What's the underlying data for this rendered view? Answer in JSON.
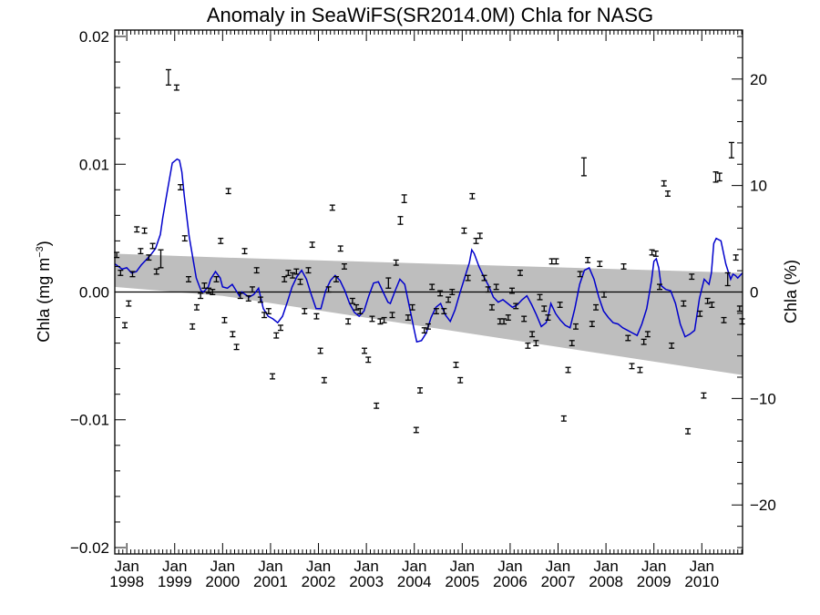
{
  "chart_data": {
    "type": "scatter",
    "title": "Anomaly in SeaWiFS(SR2014.0M) Chla for NASG",
    "ylabel": "Chla (mg m",
    "ylabel_sup": "−3",
    "ylabel_close": ")",
    "y2label": "Chla (%)",
    "x_start": 1997.75,
    "x_end": 2010.85,
    "ylim": [
      -0.0205,
      0.0205
    ],
    "y2lim": [
      -24.6,
      24.6
    ],
    "xtick_month": "Jan",
    "xticks": [
      {
        "x": 1998,
        "year": "1998"
      },
      {
        "x": 1999,
        "year": "1999"
      },
      {
        "x": 2000,
        "year": "2000"
      },
      {
        "x": 2001,
        "year": "2001"
      },
      {
        "x": 2002,
        "year": "2002"
      },
      {
        "x": 2003,
        "year": "2003"
      },
      {
        "x": 2004,
        "year": "2004"
      },
      {
        "x": 2005,
        "year": "2005"
      },
      {
        "x": 2006,
        "year": "2006"
      },
      {
        "x": 2007,
        "year": "2007"
      },
      {
        "x": 2008,
        "year": "2008"
      },
      {
        "x": 2009,
        "year": "2009"
      },
      {
        "x": 2010,
        "year": "2010"
      }
    ],
    "yticks": [
      {
        "v": 0.02,
        "label": "0.02"
      },
      {
        "v": 0.01,
        "label": "0.01"
      },
      {
        "v": 0.0,
        "label": "0.00"
      },
      {
        "v": -0.01,
        "label": "−0.01"
      },
      {
        "v": -0.02,
        "label": "−0.02"
      }
    ],
    "y2ticks": [
      {
        "v": 20,
        "label": "20"
      },
      {
        "v": 10,
        "label": "10"
      },
      {
        "v": 0,
        "label": "0"
      },
      {
        "v": -10,
        "label": "−10"
      },
      {
        "v": -20,
        "label": "−20"
      }
    ],
    "trend_band": {
      "x": [
        1997.75,
        2000.0,
        2010.85
      ],
      "upper": [
        0.003,
        0.0027,
        0.0015
      ],
      "lower": [
        0.0004,
        -0.0003,
        -0.0065
      ]
    },
    "zero_line": 0,
    "colors": {
      "series": "#0000cc",
      "band": "#bebebe",
      "points": "#000000"
    },
    "points": [
      {
        "x": 1997.79,
        "y": 0.0029,
        "e": 0.0002
      },
      {
        "x": 1997.87,
        "y": 0.0015,
        "e": 0.0002
      },
      {
        "x": 1997.96,
        "y": -0.0026,
        "e": 0.0002
      },
      {
        "x": 1998.04,
        "y": -0.0009,
        "e": 0.0002
      },
      {
        "x": 1998.12,
        "y": 0.0014,
        "e": 0.0002
      },
      {
        "x": 1998.21,
        "y": 0.0049,
        "e": 0.0002
      },
      {
        "x": 1998.29,
        "y": 0.0032,
        "e": 0.0002
      },
      {
        "x": 1998.37,
        "y": 0.0048,
        "e": 0.0002
      },
      {
        "x": 1998.46,
        "y": 0.0027,
        "e": 0.0002
      },
      {
        "x": 1998.54,
        "y": 0.0036,
        "e": 0.0002
      },
      {
        "x": 1998.62,
        "y": 0.0016,
        "e": 0.0002
      },
      {
        "x": 1998.71,
        "y": 0.0026,
        "e": 0.0007
      },
      {
        "x": 1998.87,
        "y": 0.0168,
        "e": 0.0006
      },
      {
        "x": 1999.04,
        "y": 0.016,
        "e": 0.0002
      },
      {
        "x": 1999.12,
        "y": 0.0082,
        "e": 0.0002
      },
      {
        "x": 1999.21,
        "y": 0.0042,
        "e": 0.0002
      },
      {
        "x": 1999.29,
        "y": 0.001,
        "e": 0.0002
      },
      {
        "x": 1999.37,
        "y": -0.0027,
        "e": 0.0002
      },
      {
        "x": 1999.46,
        "y": -0.0012,
        "e": 0.0002
      },
      {
        "x": 1999.54,
        "y": -0.0003,
        "e": 0.0002
      },
      {
        "x": 1999.62,
        "y": 0.0005,
        "e": 0.0002
      },
      {
        "x": 1999.71,
        "y": 0.0001,
        "e": 0.0002
      },
      {
        "x": 1999.79,
        "y": 0.0,
        "e": 0.0002
      },
      {
        "x": 1999.87,
        "y": 0.001,
        "e": 0.0002
      },
      {
        "x": 1999.96,
        "y": 0.004,
        "e": 0.0002
      },
      {
        "x": 2000.04,
        "y": -0.0022,
        "e": 0.0002
      },
      {
        "x": 2000.12,
        "y": 0.0079,
        "e": 0.0002
      },
      {
        "x": 2000.21,
        "y": -0.0033,
        "e": 0.0002
      },
      {
        "x": 2000.29,
        "y": -0.0043,
        "e": 0.0002
      },
      {
        "x": 2000.37,
        "y": -0.0003,
        "e": 0.0002
      },
      {
        "x": 2000.46,
        "y": 0.0032,
        "e": 0.0002
      },
      {
        "x": 2000.54,
        "y": -0.0005,
        "e": 0.0002
      },
      {
        "x": 2000.62,
        "y": 0.0002,
        "e": 0.0002
      },
      {
        "x": 2000.71,
        "y": 0.0017,
        "e": 0.0002
      },
      {
        "x": 2000.79,
        "y": -0.0006,
        "e": 0.0002
      },
      {
        "x": 2000.87,
        "y": -0.0018,
        "e": 0.0002
      },
      {
        "x": 2000.96,
        "y": -0.0015,
        "e": 0.0002
      },
      {
        "x": 2001.04,
        "y": -0.0066,
        "e": 0.0002
      },
      {
        "x": 2001.12,
        "y": -0.0034,
        "e": 0.0002
      },
      {
        "x": 2001.21,
        "y": -0.0028,
        "e": 0.0002
      },
      {
        "x": 2001.29,
        "y": 0.001,
        "e": 0.0002
      },
      {
        "x": 2001.37,
        "y": 0.0015,
        "e": 0.0002
      },
      {
        "x": 2001.46,
        "y": 0.0013,
        "e": 0.0002
      },
      {
        "x": 2001.54,
        "y": 0.0016,
        "e": 0.0002
      },
      {
        "x": 2001.62,
        "y": 0.0008,
        "e": 0.0002
      },
      {
        "x": 2001.71,
        "y": -0.0015,
        "e": 0.0002
      },
      {
        "x": 2001.79,
        "y": 0.0017,
        "e": 0.0002
      },
      {
        "x": 2001.87,
        "y": 0.0037,
        "e": 0.0002
      },
      {
        "x": 2001.96,
        "y": -0.0019,
        "e": 0.0002
      },
      {
        "x": 2002.04,
        "y": -0.0046,
        "e": 0.0002
      },
      {
        "x": 2002.12,
        "y": -0.0069,
        "e": 0.0002
      },
      {
        "x": 2002.21,
        "y": 0.0002,
        "e": 0.0002
      },
      {
        "x": 2002.29,
        "y": 0.0066,
        "e": 0.0002
      },
      {
        "x": 2002.37,
        "y": 0.001,
        "e": 0.0002
      },
      {
        "x": 2002.46,
        "y": 0.0034,
        "e": 0.0002
      },
      {
        "x": 2002.54,
        "y": 0.002,
        "e": 0.0002
      },
      {
        "x": 2002.62,
        "y": -0.0023,
        "e": 0.0002
      },
      {
        "x": 2002.71,
        "y": -0.0007,
        "e": 0.0002
      },
      {
        "x": 2002.79,
        "y": -0.0012,
        "e": 0.0002
      },
      {
        "x": 2002.87,
        "y": -0.0015,
        "e": 0.0002
      },
      {
        "x": 2002.96,
        "y": -0.0046,
        "e": 0.0002
      },
      {
        "x": 2003.04,
        "y": -0.0053,
        "e": 0.0002
      },
      {
        "x": 2003.12,
        "y": -0.0021,
        "e": 0.0002
      },
      {
        "x": 2003.21,
        "y": -0.0089,
        "e": 0.0002
      },
      {
        "x": 2003.29,
        "y": -0.0023,
        "e": 0.0002
      },
      {
        "x": 2003.37,
        "y": -0.0022,
        "e": 0.0002
      },
      {
        "x": 2003.46,
        "y": 0.0007,
        "e": 0.0004
      },
      {
        "x": 2003.54,
        "y": -0.0018,
        "e": 0.0002
      },
      {
        "x": 2003.62,
        "y": 0.0023,
        "e": 0.0002
      },
      {
        "x": 2003.71,
        "y": 0.0056,
        "e": 0.0003
      },
      {
        "x": 2003.79,
        "y": 0.0073,
        "e": 0.0003
      },
      {
        "x": 2003.87,
        "y": -0.002,
        "e": 0.0002
      },
      {
        "x": 2003.96,
        "y": -0.0012,
        "e": 0.0002
      },
      {
        "x": 2004.04,
        "y": -0.0108,
        "e": 0.0002
      },
      {
        "x": 2004.12,
        "y": -0.0077,
        "e": 0.0002
      },
      {
        "x": 2004.21,
        "y": -0.003,
        "e": 0.0002
      },
      {
        "x": 2004.29,
        "y": -0.0027,
        "e": 0.0002
      },
      {
        "x": 2004.37,
        "y": 0.0004,
        "e": 0.0002
      },
      {
        "x": 2004.46,
        "y": -0.0015,
        "e": 0.0002
      },
      {
        "x": 2004.54,
        "y": -0.0001,
        "e": 0.0002
      },
      {
        "x": 2004.62,
        "y": -0.0015,
        "e": 0.0002
      },
      {
        "x": 2004.71,
        "y": -0.0006,
        "e": 0.0002
      },
      {
        "x": 2004.79,
        "y": 0.0,
        "e": 0.0002
      },
      {
        "x": 2004.87,
        "y": -0.0057,
        "e": 0.0002
      },
      {
        "x": 2004.96,
        "y": -0.0069,
        "e": 0.0002
      },
      {
        "x": 2005.04,
        "y": 0.0048,
        "e": 0.0002
      },
      {
        "x": 2005.12,
        "y": 0.0011,
        "e": 0.0002
      },
      {
        "x": 2005.21,
        "y": 0.0075,
        "e": 0.0002
      },
      {
        "x": 2005.29,
        "y": 0.004,
        "e": 0.0002
      },
      {
        "x": 2005.37,
        "y": 0.0044,
        "e": 0.0002
      },
      {
        "x": 2005.46,
        "y": 0.0011,
        "e": 0.0002
      },
      {
        "x": 2005.54,
        "y": 0.0002,
        "e": 0.0002
      },
      {
        "x": 2005.62,
        "y": -0.0012,
        "e": 0.0002
      },
      {
        "x": 2005.71,
        "y": 0.0004,
        "e": 0.0002
      },
      {
        "x": 2005.79,
        "y": -0.0023,
        "e": 0.0002
      },
      {
        "x": 2005.87,
        "y": -0.0023,
        "e": 0.0002
      },
      {
        "x": 2005.96,
        "y": -0.002,
        "e": 0.0002
      },
      {
        "x": 2006.04,
        "y": 0.0001,
        "e": 0.0002
      },
      {
        "x": 2006.12,
        "y": -0.0011,
        "e": 0.0002
      },
      {
        "x": 2006.21,
        "y": 0.0015,
        "e": 0.0002
      },
      {
        "x": 2006.29,
        "y": -0.0021,
        "e": 0.0002
      },
      {
        "x": 2006.37,
        "y": -0.0042,
        "e": 0.0002
      },
      {
        "x": 2006.46,
        "y": -0.0033,
        "e": 0.0002
      },
      {
        "x": 2006.54,
        "y": -0.004,
        "e": 0.0002
      },
      {
        "x": 2006.62,
        "y": -0.0004,
        "e": 0.0002
      },
      {
        "x": 2006.71,
        "y": -0.0013,
        "e": 0.0002
      },
      {
        "x": 2006.79,
        "y": -0.002,
        "e": 0.0002
      },
      {
        "x": 2006.87,
        "y": 0.0024,
        "e": 0.0002
      },
      {
        "x": 2006.96,
        "y": 0.0024,
        "e": 0.0002
      },
      {
        "x": 2007.04,
        "y": -0.001,
        "e": 0.0002
      },
      {
        "x": 2007.12,
        "y": -0.0099,
        "e": 0.0002
      },
      {
        "x": 2007.21,
        "y": -0.0061,
        "e": 0.0002
      },
      {
        "x": 2007.29,
        "y": -0.004,
        "e": 0.0002
      },
      {
        "x": 2007.37,
        "y": -0.0027,
        "e": 0.0002
      },
      {
        "x": 2007.46,
        "y": 0.0014,
        "e": 0.0002
      },
      {
        "x": 2007.54,
        "y": 0.0098,
        "e": 0.0007
      },
      {
        "x": 2007.62,
        "y": 0.0025,
        "e": 0.0002
      },
      {
        "x": 2007.71,
        "y": -0.0025,
        "e": 0.0002
      },
      {
        "x": 2007.79,
        "y": -0.0012,
        "e": 0.0002
      },
      {
        "x": 2007.87,
        "y": 0.0022,
        "e": 0.0002
      },
      {
        "x": 2007.96,
        "y": -0.0002,
        "e": 0.0002
      },
      {
        "x": 2008.37,
        "y": 0.002,
        "e": 0.0002
      },
      {
        "x": 2008.46,
        "y": -0.0036,
        "e": 0.0002
      },
      {
        "x": 2008.54,
        "y": -0.0058,
        "e": 0.0002
      },
      {
        "x": 2008.71,
        "y": -0.0061,
        "e": 0.0002
      },
      {
        "x": 2008.79,
        "y": -0.0039,
        "e": 0.0002
      },
      {
        "x": 2008.87,
        "y": -0.0033,
        "e": 0.0002
      },
      {
        "x": 2008.96,
        "y": 0.0031,
        "e": 0.0002
      },
      {
        "x": 2009.04,
        "y": 0.003,
        "e": 0.0002
      },
      {
        "x": 2009.12,
        "y": 0.0004,
        "e": 0.0002
      },
      {
        "x": 2009.21,
        "y": 0.0085,
        "e": 0.0002
      },
      {
        "x": 2009.29,
        "y": 0.0077,
        "e": 0.0002
      },
      {
        "x": 2009.37,
        "y": -0.0042,
        "e": 0.0002
      },
      {
        "x": 2009.62,
        "y": -0.0009,
        "e": 0.0002
      },
      {
        "x": 2009.71,
        "y": -0.0109,
        "e": 0.0002
      },
      {
        "x": 2009.79,
        "y": 0.0012,
        "e": 0.0002
      },
      {
        "x": 2009.96,
        "y": -0.0017,
        "e": 0.0002
      },
      {
        "x": 2010.04,
        "y": -0.0081,
        "e": 0.0002
      },
      {
        "x": 2010.12,
        "y": -0.0007,
        "e": 0.0002
      },
      {
        "x": 2010.21,
        "y": -0.001,
        "e": 0.0002
      },
      {
        "x": 2010.29,
        "y": 0.009,
        "e": 0.0004
      },
      {
        "x": 2010.37,
        "y": 0.009,
        "e": 0.0003
      },
      {
        "x": 2010.46,
        "y": -0.0022,
        "e": 0.0002
      },
      {
        "x": 2010.54,
        "y": 0.001,
        "e": 0.0005
      },
      {
        "x": 2010.62,
        "y": 0.0111,
        "e": 0.0006
      },
      {
        "x": 2010.71,
        "y": 0.0027,
        "e": 0.0002
      },
      {
        "x": 2010.79,
        "y": -0.0013,
        "e": 0.0002
      },
      {
        "x": 2010.84,
        "y": -0.0023,
        "e": 0.0002
      }
    ],
    "model_line": {
      "x": [
        1997.75,
        1997.9,
        1998.0,
        1998.1,
        1998.2,
        1998.3,
        1998.4,
        1998.5,
        1998.6,
        1998.7,
        1998.75,
        1998.85,
        1998.95,
        1999.05,
        1999.1,
        1999.15,
        1999.2,
        1999.3,
        1999.45,
        1999.55,
        1999.6,
        1999.7,
        1999.75,
        1999.85,
        1999.95,
        2000.0,
        2000.1,
        2000.2,
        2000.3,
        2000.35,
        2000.4,
        2000.55,
        2000.65,
        2000.75,
        2000.85,
        2000.95,
        2001.05,
        2001.15,
        2001.25,
        2001.35,
        2001.45,
        2001.55,
        2001.65,
        2001.75,
        2001.85,
        2001.95,
        2002.05,
        2002.15,
        2002.25,
        2002.35,
        2002.45,
        2002.55,
        2002.65,
        2002.75,
        2002.85,
        2002.95,
        2003.05,
        2003.15,
        2003.25,
        2003.35,
        2003.45,
        2003.5,
        2003.6,
        2003.7,
        2003.8,
        2003.9,
        2004.0,
        2004.05,
        2004.15,
        2004.25,
        2004.35,
        2004.45,
        2004.55,
        2004.65,
        2004.75,
        2004.85,
        2004.95,
        2005.05,
        2005.15,
        2005.2,
        2005.25,
        2005.35,
        2005.45,
        2005.55,
        2005.65,
        2005.75,
        2005.85,
        2005.95,
        2006.05,
        2006.15,
        2006.25,
        2006.35,
        2006.45,
        2006.55,
        2006.65,
        2006.75,
        2006.8,
        2006.85,
        2006.95,
        2007.05,
        2007.15,
        2007.25,
        2007.35,
        2007.45,
        2007.55,
        2007.65,
        2007.75,
        2007.85,
        2007.95,
        2008.05,
        2008.15,
        2008.25,
        2008.35,
        2008.45,
        2008.55,
        2008.65,
        2008.75,
        2008.85,
        2008.95,
        2009.0,
        2009.05,
        2009.1,
        2009.15,
        2009.25,
        2009.35,
        2009.45,
        2009.55,
        2009.65,
        2009.75,
        2009.85,
        2009.95,
        2010.05,
        2010.15,
        2010.2,
        2010.25,
        2010.3,
        2010.4,
        2010.5,
        2010.6,
        2010.65,
        2010.7,
        2010.75,
        2010.85
      ],
      "y": [
        0.0022,
        0.0018,
        0.0019,
        0.0015,
        0.0016,
        0.0021,
        0.0025,
        0.0029,
        0.0034,
        0.0045,
        0.0058,
        0.008,
        0.0101,
        0.0104,
        0.0103,
        0.0094,
        0.0075,
        0.0044,
        0.0011,
        0.0001,
        0.0,
        0.0004,
        0.001,
        0.0016,
        0.0011,
        0.0004,
        0.0003,
        0.0006,
        0.0,
        -0.0003,
        0.0,
        -0.0004,
        -0.0002,
        0.0003,
        -0.0013,
        -0.0019,
        -0.0021,
        -0.0024,
        -0.0019,
        -0.0008,
        0.0004,
        0.0012,
        0.0017,
        0.001,
        -0.0002,
        -0.0013,
        -0.0013,
        0.0001,
        0.0009,
        0.0013,
        0.0009,
        0.0001,
        -0.0009,
        -0.0016,
        -0.0019,
        -0.0015,
        -0.0003,
        0.0007,
        0.0008,
        0.0,
        -0.0008,
        -0.0009,
        0.0001,
        0.001,
        0.0006,
        -0.0012,
        -0.003,
        -0.0039,
        -0.0038,
        -0.0032,
        -0.002,
        -0.0012,
        -0.0009,
        -0.0018,
        -0.0023,
        -0.0014,
        -0.0001,
        0.0011,
        0.0023,
        0.0033,
        0.003,
        0.002,
        0.0012,
        0.0005,
        -0.0004,
        -0.0008,
        -0.0006,
        -0.0009,
        -0.0012,
        -0.001,
        -0.0006,
        -0.0003,
        -0.001,
        -0.0018,
        -0.0027,
        -0.0024,
        -0.0018,
        -0.0009,
        -0.0017,
        -0.0022,
        -0.0026,
        -0.0028,
        -0.0013,
        0.0006,
        0.0017,
        0.0019,
        0.001,
        -0.0004,
        -0.0015,
        -0.002,
        -0.0024,
        -0.0025,
        -0.0028,
        -0.003,
        -0.0032,
        -0.0034,
        -0.0025,
        -0.0013,
        0.0009,
        0.0024,
        0.0026,
        0.0019,
        0.0005,
        0.0002,
        0.0001,
        -0.0009,
        -0.0025,
        -0.0035,
        -0.0033,
        -0.003,
        -0.0005,
        0.001,
        0.0006,
        0.0015,
        0.0038,
        0.0042,
        0.004,
        0.0022,
        0.001,
        0.0014,
        0.0013,
        0.0011,
        0.0015
      ]
    }
  }
}
